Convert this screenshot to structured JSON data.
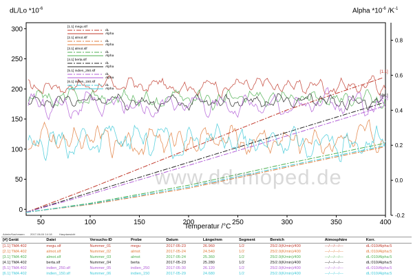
{
  "header": {
    "y_left_label": "dL/Lo *10",
    "y_left_exp": "-6",
    "y_right_label": "Alpha *10",
    "y_right_exp": "-6",
    "y_right_unit": " /K",
    "y_right_unit_exp": "-1",
    "x_label": "Temperatur /°C"
  },
  "watermark": "www.ddrmoped.de",
  "footer": {
    "operator": "Admin/Kachmann",
    "timestamp": "2017-06-04 14:18",
    "place": "Hauptansicht"
  },
  "colors": {
    "s1": "#c0392b",
    "s2": "#e07b39",
    "s3": "#4caf50",
    "s4": "#222222",
    "s5": "#b05bd6",
    "s6": "#3fc9d8"
  },
  "chart_data": {
    "type": "line",
    "xlim": [
      35,
      400
    ],
    "ylim_left": [
      -10,
      310
    ],
    "ylim_right": [
      -0.2,
      0.9
    ],
    "x_ticks": [
      50,
      100,
      150,
      200,
      250,
      300,
      350,
      400
    ],
    "y_left_ticks": [
      0,
      50,
      100,
      150,
      200,
      250,
      300
    ],
    "y_right_ticks": [
      -0.2,
      0,
      0.2,
      0.4,
      0.6,
      0.8
    ],
    "grid": false,
    "legend_position": "top-left",
    "series": [
      {
        "key": "s1",
        "file": "[1.1] megu.slf",
        "dl": {
          "x": [
            35,
            100,
            200,
            300,
            400
          ],
          "y": [
            -5,
            35,
            100,
            165,
            220
          ]
        },
        "alpha": {
          "base": 0.54,
          "amp": 0.045
        }
      },
      {
        "key": "s2",
        "file": "[2.1] almot.slf",
        "dl": {
          "x": [
            35,
            100,
            200,
            300,
            400
          ],
          "y": [
            -5,
            8,
            35,
            70,
            104
          ]
        },
        "alpha": {
          "base": 0.23,
          "amp": 0.07
        }
      },
      {
        "key": "s3",
        "file": "[3.1] almot.slf",
        "dl": {
          "x": [
            35,
            100,
            200,
            300,
            400
          ],
          "y": [
            -5,
            10,
            40,
            76,
            110
          ]
        },
        "alpha": {
          "base": 0.47,
          "amp": 0.05
        }
      },
      {
        "key": "s4",
        "file": "[4.1] berta.slf",
        "dl": {
          "x": [
            35,
            100,
            200,
            300,
            400
          ],
          "y": [
            -5,
            28,
            78,
            128,
            178
          ]
        },
        "alpha": {
          "base": 0.45,
          "amp": 0.04
        }
      },
      {
        "key": "s5",
        "file": "[5.1] indien_250.slf",
        "dl": {
          "x": [
            35,
            100,
            200,
            300,
            400
          ],
          "y": [
            -5,
            25,
            73,
            122,
            172
          ]
        },
        "alpha": {
          "base": 0.43,
          "amp": 0.055
        }
      },
      {
        "key": "s6",
        "file": "[6.1] indien_150.slf",
        "dl": {
          "x": [
            35,
            100,
            200,
            300,
            400
          ],
          "y": [
            -5,
            9,
            37,
            72,
            106
          ]
        },
        "alpha": {
          "base": 0.22,
          "amp": 0.08
        }
      }
    ],
    "legend_sub_dl": "dL",
    "legend_sub_alpha": "Alpha",
    "end_labels": [
      "[1.1]",
      "[4.1]",
      "[5.1]"
    ]
  },
  "table": {
    "headers": [
      "[#] Gerät",
      "Datei",
      "Versuchs-ID",
      "Probe",
      "Datum",
      "Länge/mm",
      "Segment",
      "Bereich",
      "Atmosphäre",
      "Korr."
    ],
    "rows": [
      [
        "[1.1] TMA 402",
        "megu.slf",
        "Nummer_01",
        "megu",
        "2017-05-23",
        "26.960",
        "1/2",
        "25/2.0(K/min)/400",
        "---/---/---/---",
        "dL:010/Alpha:5"
      ],
      [
        "[2.1] TMA 402",
        "almot.slf",
        "Nummer_02",
        "almot",
        "2017-05-24",
        "24.540",
        "1/2",
        "25/2.0(K/min)/400",
        "---/---/---/---",
        "dL:010/Alpha:5"
      ],
      [
        "[3.1] TMA 402",
        "almot.slf",
        "Nummer_03",
        "almot",
        "2017-05-24",
        "25.360",
        "1/2",
        "25/2.0(K/min)/400",
        "---/---/---/---",
        "dL:010/Alpha:5"
      ],
      [
        "[4.1] TMA 402",
        "berta.slf",
        "Nummer_04",
        "berta",
        "2017-05-23",
        "25.280",
        "1/2",
        "25/2.0(K/min)/400",
        "---/---/---/---",
        "dL:010/Alpha:5"
      ],
      [
        "[5.1] TMA 402",
        "indien_250.slf",
        "Nummer_05",
        "indien_250",
        "2017-05-30",
        "26.120",
        "1/2",
        "25/2.0(K/min)/400",
        "---/---/---/---",
        "dL:010/Alpha:5"
      ],
      [
        "[6.1] TMA 402",
        "indien_150.slf",
        "Nummer_06",
        "indien_150",
        "2017-05-29",
        "24.680",
        "1/2",
        "25/2.0(K/min)/400",
        "---/---/---/---",
        "dL:010/Alpha:5"
      ]
    ]
  }
}
